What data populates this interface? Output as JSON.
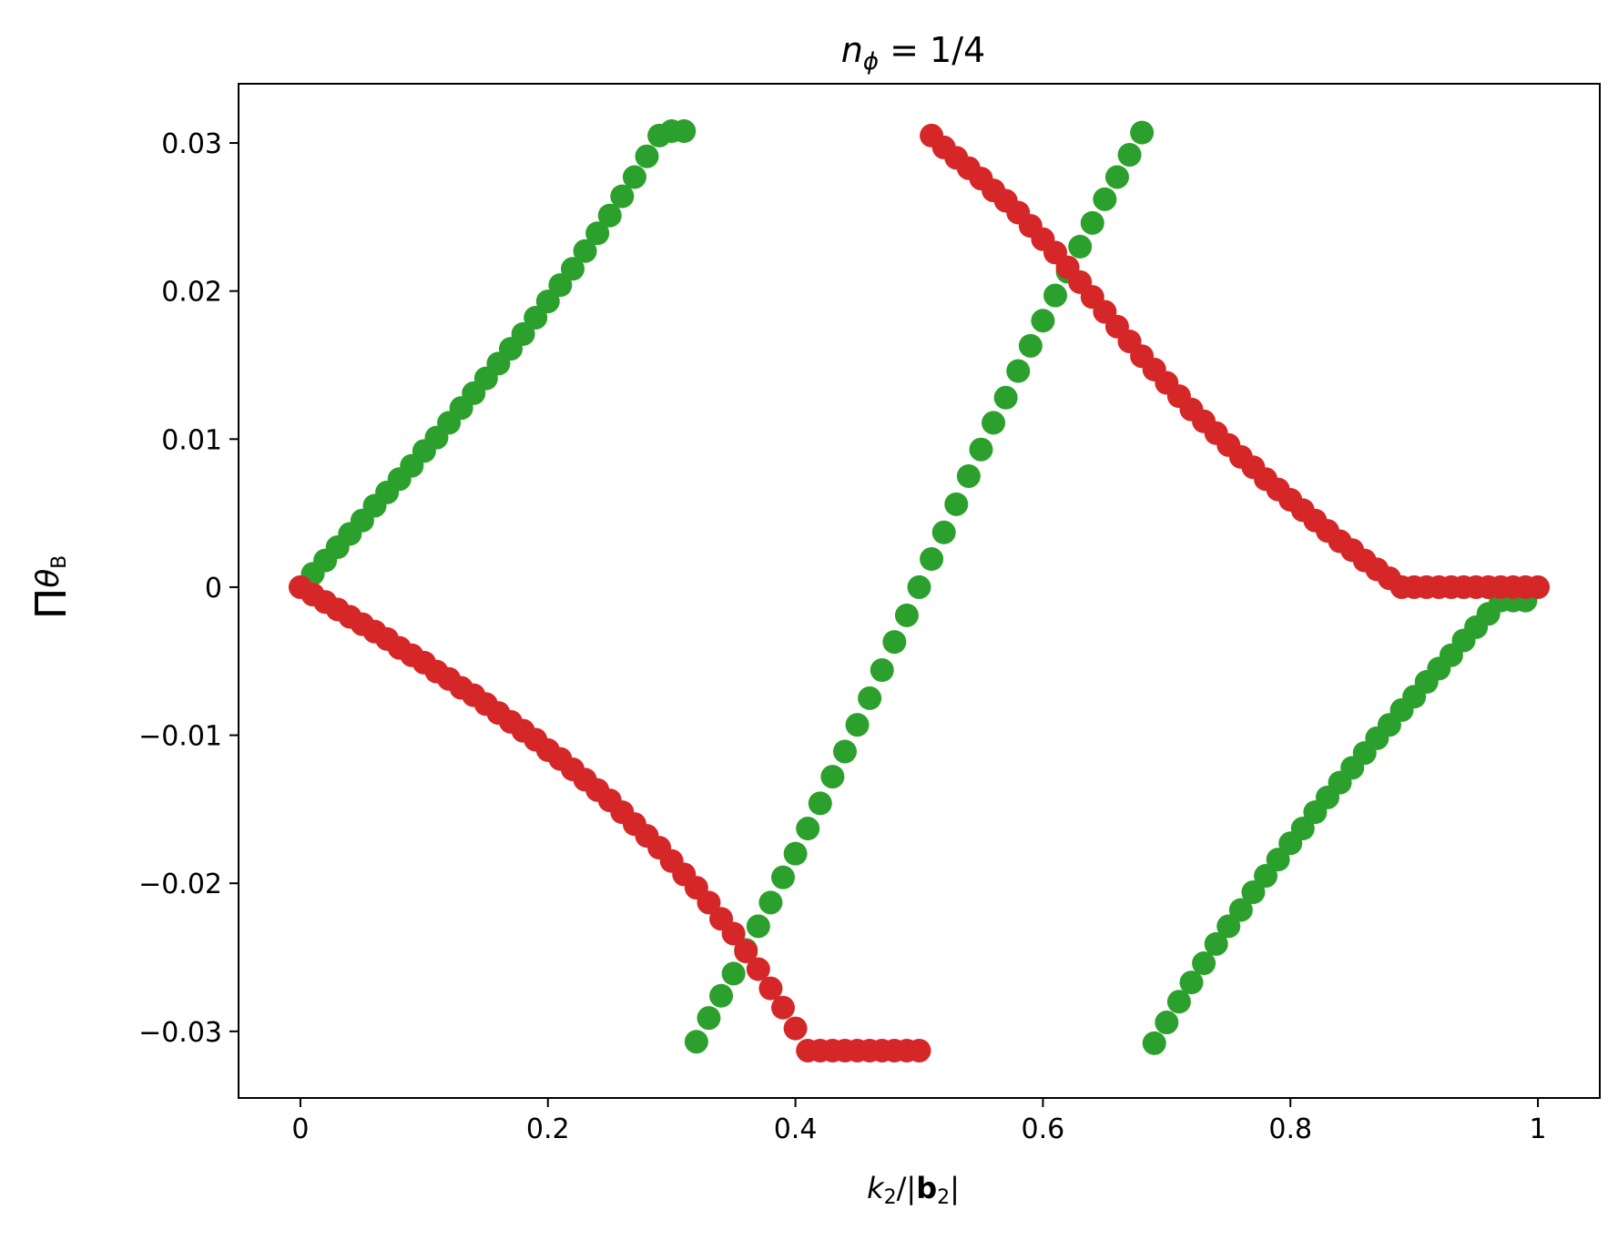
{
  "chart_data": {
    "type": "scatter",
    "title": "n_ϕ = 1/4",
    "title_parts": {
      "base": "n",
      "sub": "ϕ",
      "rest": " = 1/4"
    },
    "xlabel": "k₂/|b₂|",
    "xlabel_parts": {
      "a": "k",
      "a_sub": "2",
      "b": "/|",
      "bold": "b",
      "bold_sub": "2",
      "c": "|"
    },
    "ylabel": "Πθ_B",
    "ylabel_parts": {
      "pi": "Π",
      "theta": "θ",
      "sub": "B"
    },
    "xlim": [
      -0.05,
      1.05
    ],
    "ylim": [
      -0.0345,
      0.034
    ],
    "xticks": [
      0,
      0.2,
      0.4,
      0.6,
      0.8,
      1
    ],
    "xtick_labels": [
      "0",
      "0.2",
      "0.4",
      "0.6",
      "0.8",
      "1"
    ],
    "yticks": [
      0.03,
      0.02,
      0.01,
      0,
      -0.01,
      -0.02,
      -0.03
    ],
    "ytick_labels": [
      "0.03",
      "0.02",
      "0.01",
      "0",
      "−0.01",
      "−0.02",
      "−0.03"
    ],
    "grid": false,
    "colors": {
      "green": "#2ca02c",
      "red": "#d62728"
    },
    "series": [
      {
        "color": "#2ca02c",
        "x": [
          0.01,
          0.02,
          0.03,
          0.04,
          0.05,
          0.06,
          0.07,
          0.08,
          0.09,
          0.1,
          0.11,
          0.12,
          0.13,
          0.14,
          0.15,
          0.16,
          0.17,
          0.18,
          0.19,
          0.2,
          0.21,
          0.22,
          0.23,
          0.24,
          0.25,
          0.26,
          0.27,
          0.28,
          0.29,
          0.3,
          0.31
        ],
        "y": [
          0.0009,
          0.0018,
          0.0027,
          0.0036,
          0.0045,
          0.0055,
          0.0064,
          0.0073,
          0.0082,
          0.0092,
          0.0101,
          0.0111,
          0.0121,
          0.0131,
          0.0141,
          0.0151,
          0.0161,
          0.0171,
          0.0182,
          0.0193,
          0.0204,
          0.0215,
          0.0227,
          0.0239,
          0.0251,
          0.0264,
          0.0277,
          0.0291,
          0.0305,
          0.0308,
          0.0308
        ]
      },
      {
        "color": "#2ca02c",
        "x": [
          0.32,
          0.33,
          0.34,
          0.35,
          0.36,
          0.37,
          0.38,
          0.39,
          0.4,
          0.41,
          0.42,
          0.43,
          0.44,
          0.45,
          0.46,
          0.47,
          0.48,
          0.49,
          0.5,
          0.51,
          0.52,
          0.53,
          0.54,
          0.55,
          0.56,
          0.57,
          0.58,
          0.59,
          0.6,
          0.61,
          0.62,
          0.63,
          0.64,
          0.65,
          0.66,
          0.67,
          0.68
        ],
        "y": [
          -0.0307,
          -0.0291,
          -0.0276,
          -0.0261,
          -0.0245,
          -0.0229,
          -0.0213,
          -0.0196,
          -0.018,
          -0.0163,
          -0.0146,
          -0.0128,
          -0.0111,
          -0.0093,
          -0.0075,
          -0.0056,
          -0.0037,
          -0.0019,
          0.0,
          0.0019,
          0.0037,
          0.0056,
          0.0075,
          0.0093,
          0.0111,
          0.0128,
          0.0146,
          0.0163,
          0.018,
          0.0197,
          0.0213,
          0.023,
          0.0246,
          0.0262,
          0.0277,
          0.0292,
          0.0307
        ]
      },
      {
        "color": "#2ca02c",
        "x": [
          0.69,
          0.7,
          0.71,
          0.72,
          0.73,
          0.74,
          0.75,
          0.76,
          0.77,
          0.78,
          0.79,
          0.8,
          0.81,
          0.82,
          0.83,
          0.84,
          0.85,
          0.86,
          0.87,
          0.88,
          0.89,
          0.9,
          0.91,
          0.92,
          0.93,
          0.94,
          0.95,
          0.96,
          0.97,
          0.98,
          0.99
        ],
        "y": [
          -0.0308,
          -0.0294,
          -0.028,
          -0.0267,
          -0.0254,
          -0.0241,
          -0.0229,
          -0.0218,
          -0.0206,
          -0.0195,
          -0.0184,
          -0.0173,
          -0.0163,
          -0.0152,
          -0.0142,
          -0.0132,
          -0.0122,
          -0.0112,
          -0.0102,
          -0.0093,
          -0.0083,
          -0.0074,
          -0.0064,
          -0.0055,
          -0.0046,
          -0.0036,
          -0.0027,
          -0.0018,
          -0.0009,
          -0.0009,
          -0.0009
        ]
      },
      {
        "color": "#d62728",
        "x": [
          0,
          0.01,
          0.02,
          0.03,
          0.04,
          0.05,
          0.06,
          0.07,
          0.08,
          0.09,
          0.1,
          0.11,
          0.12,
          0.13,
          0.14,
          0.15,
          0.16,
          0.17,
          0.18,
          0.19,
          0.2,
          0.21,
          0.22,
          0.23,
          0.24,
          0.25,
          0.26,
          0.27,
          0.28,
          0.29,
          0.3,
          0.31,
          0.32,
          0.33,
          0.34,
          0.35,
          0.36,
          0.37,
          0.38,
          0.39,
          0.4,
          0.41,
          0.42,
          0.43,
          0.44,
          0.45,
          0.46,
          0.47,
          0.48,
          0.49,
          0.5
        ],
        "y": [
          0.0,
          -0.0005,
          -0.001,
          -0.0015,
          -0.002,
          -0.0025,
          -0.003,
          -0.0035,
          -0.0041,
          -0.0046,
          -0.0051,
          -0.0057,
          -0.0062,
          -0.0068,
          -0.0073,
          -0.0079,
          -0.0085,
          -0.0091,
          -0.0097,
          -0.0103,
          -0.011,
          -0.0116,
          -0.0123,
          -0.013,
          -0.0137,
          -0.0144,
          -0.0152,
          -0.016,
          -0.0168,
          -0.0176,
          -0.0185,
          -0.0194,
          -0.0203,
          -0.0213,
          -0.0224,
          -0.0234,
          -0.0246,
          -0.0258,
          -0.0271,
          -0.0284,
          -0.0298,
          -0.0313,
          -0.0313,
          -0.0313,
          -0.0313,
          -0.0313,
          -0.0313,
          -0.0313,
          -0.0313,
          -0.0313,
          -0.0313
        ]
      },
      {
        "color": "#d62728",
        "x": [
          0.51,
          0.52,
          0.53,
          0.54,
          0.55,
          0.56,
          0.57,
          0.58,
          0.59,
          0.6,
          0.61,
          0.62,
          0.63,
          0.64,
          0.65,
          0.66,
          0.67,
          0.68,
          0.69,
          0.7,
          0.71,
          0.72,
          0.73,
          0.74,
          0.75,
          0.76,
          0.77,
          0.78,
          0.79,
          0.8,
          0.81,
          0.82,
          0.83,
          0.84,
          0.85,
          0.86,
          0.87,
          0.88,
          0.89,
          0.9,
          0.91,
          0.92,
          0.93,
          0.94,
          0.95,
          0.96,
          0.97,
          0.98,
          0.99,
          1.0
        ],
        "y": [
          0.0305,
          0.0297,
          0.029,
          0.0283,
          0.0276,
          0.0268,
          0.0261,
          0.0253,
          0.0244,
          0.0235,
          0.0226,
          0.0216,
          0.0206,
          0.0196,
          0.0186,
          0.0176,
          0.0166,
          0.0156,
          0.0147,
          0.0138,
          0.0129,
          0.012,
          0.0112,
          0.0104,
          0.0096,
          0.0088,
          0.0081,
          0.0073,
          0.0066,
          0.0059,
          0.0052,
          0.0045,
          0.0038,
          0.0031,
          0.0025,
          0.0018,
          0.0012,
          0.0006,
          0.0,
          0.0,
          0.0,
          0.0,
          0.0,
          0.0,
          0.0,
          0.0,
          0.0,
          0.0,
          0.0,
          0.0
        ]
      }
    ]
  }
}
